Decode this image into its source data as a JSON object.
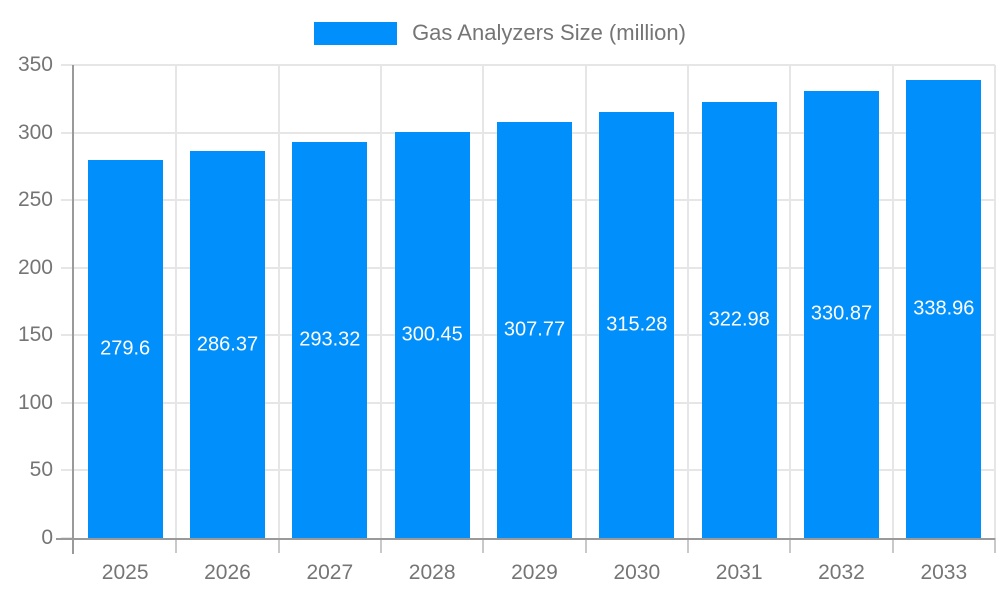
{
  "legend": {
    "label": "Gas Analyzers Size (million)"
  },
  "chart_data": {
    "type": "bar",
    "title": "Gas Analyzers Size (million)",
    "categories": [
      "2025",
      "2026",
      "2027",
      "2028",
      "2029",
      "2030",
      "2031",
      "2032",
      "2033"
    ],
    "series": [
      {
        "name": "Gas Analyzers Size (million)",
        "values": [
          279.6,
          286.37,
          293.32,
          300.45,
          307.77,
          315.28,
          322.98,
          330.87,
          338.96
        ]
      }
    ],
    "value_labels": [
      "279.6",
      "286.37",
      "293.32",
      "300.45",
      "307.77",
      "315.28",
      "322.98",
      "330.87",
      "338.96"
    ],
    "xlabel": "",
    "ylabel": "",
    "ylim": [
      0,
      350
    ],
    "y_ticks": [
      0,
      50,
      100,
      150,
      200,
      250,
      300,
      350
    ],
    "grid": "horizontal gridlines at every 50; vertical gridlines at category boundaries",
    "legend_position": "top-center",
    "colors": {
      "bar": "#008FFB",
      "axis_label": "#757575",
      "grid_line": "#e6e6e6",
      "axis_line": "#9a9a9a",
      "tick": "#c9c9c9",
      "value_label": "#ffffff",
      "background": "#ffffff"
    }
  }
}
